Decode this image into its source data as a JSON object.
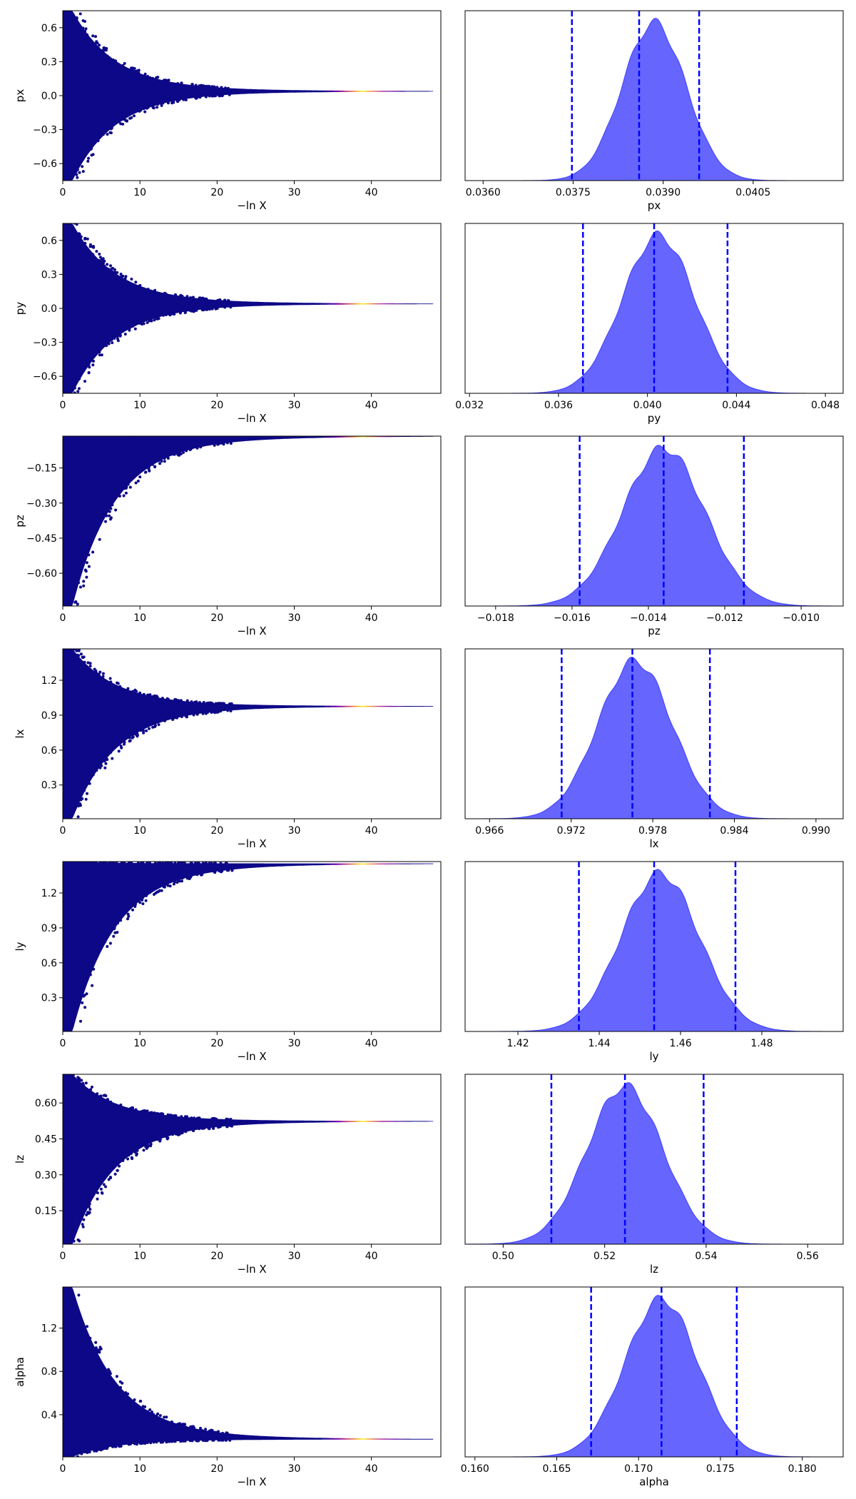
{
  "chart_data": [
    {
      "type": "scatter",
      "ylabel": "px",
      "xlabel": "−ln X",
      "xlim": [
        0,
        49
      ],
      "ylim": [
        -0.75,
        0.75
      ],
      "xticks": [
        "0",
        "10",
        "20",
        "30",
        "40"
      ],
      "yticks": [
        "-0.6",
        "-0.3",
        "0.0",
        "0.3",
        "0.6"
      ],
      "yticks_display": [
        "−0.6",
        "−0.3",
        "0.0",
        "0.3",
        "0.6"
      ],
      "converge_value": 0.0386,
      "initial_low": -0.75,
      "initial_high": 0.75,
      "colormap": "plasma"
    },
    {
      "type": "area",
      "xlabel": "px",
      "xlim": [
        0.0357,
        0.042
      ],
      "xticks": [
        "0.0360",
        "0.0375",
        "0.0390",
        "0.0405"
      ],
      "mode": 0.03885,
      "quantiles": [
        0.03748,
        0.0386,
        0.0396
      ],
      "fill_color": "#6666ff",
      "line_color": "#0000ff"
    },
    {
      "type": "scatter",
      "ylabel": "py",
      "xlabel": "−ln X",
      "xlim": [
        0,
        49
      ],
      "ylim": [
        -0.75,
        0.75
      ],
      "xticks": [
        "0",
        "10",
        "20",
        "30",
        "40"
      ],
      "yticks": [
        "-0.6",
        "-0.3",
        "0.0",
        "0.3",
        "0.6"
      ],
      "yticks_display": [
        "−0.6",
        "−0.3",
        "0.0",
        "0.3",
        "0.6"
      ],
      "converge_value": 0.0402,
      "initial_low": -0.75,
      "initial_high": 0.75,
      "colormap": "plasma"
    },
    {
      "type": "area",
      "xlabel": "py",
      "xlim": [
        0.0318,
        0.0488
      ],
      "xticks": [
        "0.032",
        "0.036",
        "0.040",
        "0.044",
        "0.048"
      ],
      "mode": 0.0405,
      "quantiles": [
        0.0371,
        0.0403,
        0.0436
      ],
      "fill_color": "#6666ff",
      "line_color": "#0000ff"
    },
    {
      "type": "scatter",
      "ylabel": "pz",
      "xlabel": "−ln X",
      "xlim": [
        0,
        49
      ],
      "ylim": [
        -0.74,
        -0.014
      ],
      "xticks": [
        "0",
        "10",
        "20",
        "30",
        "40"
      ],
      "yticks": [
        "-0.60",
        "-0.45",
        "-0.30",
        "-0.15"
      ],
      "yticks_display": [
        "−0.60",
        "−0.45",
        "−0.30",
        "−0.15"
      ],
      "converge_value": -0.0137,
      "initial_low": -0.74,
      "initial_high": -0.014,
      "colormap": "plasma"
    },
    {
      "type": "area",
      "xlabel": "pz",
      "xlim": [
        -0.0188,
        -0.0089
      ],
      "xticks": [
        "-0.018",
        "-0.016",
        "-0.014",
        "-0.012",
        "-0.010"
      ],
      "xticks_display": [
        "−0.018",
        "−0.016",
        "−0.014",
        "−0.012",
        "−0.010"
      ],
      "mode": -0.0136,
      "quantiles": [
        -0.0158,
        -0.0136,
        -0.0115
      ],
      "fill_color": "#6666ff",
      "line_color": "#0000ff"
    },
    {
      "type": "scatter",
      "ylabel": "lx",
      "xlabel": "−ln X",
      "xlim": [
        0,
        49
      ],
      "ylim": [
        0.01,
        1.47
      ],
      "xticks": [
        "0",
        "10",
        "20",
        "30",
        "40"
      ],
      "yticks": [
        "0.3",
        "0.6",
        "0.9",
        "1.2"
      ],
      "converge_value": 0.977,
      "initial_low": 0.01,
      "initial_high": 1.47,
      "colormap": "plasma"
    },
    {
      "type": "area",
      "xlabel": "lx",
      "xlim": [
        0.9642,
        0.992
      ],
      "xticks": [
        "0.966",
        "0.972",
        "0.978",
        "0.984",
        "0.990"
      ],
      "mode": 0.9767,
      "quantiles": [
        0.9713,
        0.9765,
        0.9822
      ],
      "fill_color": "#6666ff",
      "line_color": "#0000ff"
    },
    {
      "type": "scatter",
      "ylabel": "ly",
      "xlabel": "−ln X",
      "xlim": [
        0,
        49
      ],
      "ylim": [
        0.01,
        1.47
      ],
      "xticks": [
        "0",
        "10",
        "20",
        "30",
        "40"
      ],
      "yticks": [
        "0.3",
        "0.6",
        "0.9",
        "1.2"
      ],
      "converge_value": 1.454,
      "initial_low": 0.01,
      "initial_high": 1.47,
      "colormap": "plasma"
    },
    {
      "type": "area",
      "xlabel": "ly",
      "xlim": [
        1.407,
        1.5
      ],
      "xticks": [
        "1.42",
        "1.44",
        "1.46",
        "1.48"
      ],
      "mode": 1.455,
      "quantiles": [
        1.435,
        1.4535,
        1.4735
      ],
      "fill_color": "#6666ff",
      "line_color": "#0000ff"
    },
    {
      "type": "scatter",
      "ylabel": "lz",
      "xlabel": "−ln X",
      "xlim": [
        0,
        49
      ],
      "ylim": [
        0.01,
        0.72
      ],
      "xticks": [
        "0",
        "10",
        "20",
        "30",
        "40"
      ],
      "yticks": [
        "0.15",
        "0.30",
        "0.45",
        "0.60"
      ],
      "converge_value": 0.524,
      "initial_low": 0.01,
      "initial_high": 0.72,
      "colormap": "plasma"
    },
    {
      "type": "area",
      "xlabel": "lz",
      "xlim": [
        0.4925,
        0.567
      ],
      "xticks": [
        "0.50",
        "0.52",
        "0.54",
        "0.56"
      ],
      "mode": 0.524,
      "quantiles": [
        0.5095,
        0.524,
        0.5395
      ],
      "fill_color": "#6666ff",
      "line_color": "#0000ff"
    },
    {
      "type": "scatter",
      "ylabel": "alpha",
      "xlabel": "−ln X",
      "xlim": [
        0,
        49
      ],
      "ylim": [
        0.01,
        1.58
      ],
      "xticks": [
        "0",
        "10",
        "20",
        "30",
        "40"
      ],
      "yticks": [
        "0.4",
        "0.8",
        "1.2"
      ],
      "converge_value": 0.171,
      "initial_low": 0.01,
      "initial_high": 1.58,
      "colormap": "plasma"
    },
    {
      "type": "area",
      "xlabel": "alpha",
      "xlim": [
        0.1594,
        0.1825
      ],
      "xticks": [
        "0.160",
        "0.165",
        "0.170",
        "0.175",
        "0.180"
      ],
      "mode": 0.1714,
      "quantiles": [
        0.1671,
        0.1714,
        0.176
      ],
      "fill_color": "#6666ff",
      "line_color": "#0000ff"
    }
  ]
}
